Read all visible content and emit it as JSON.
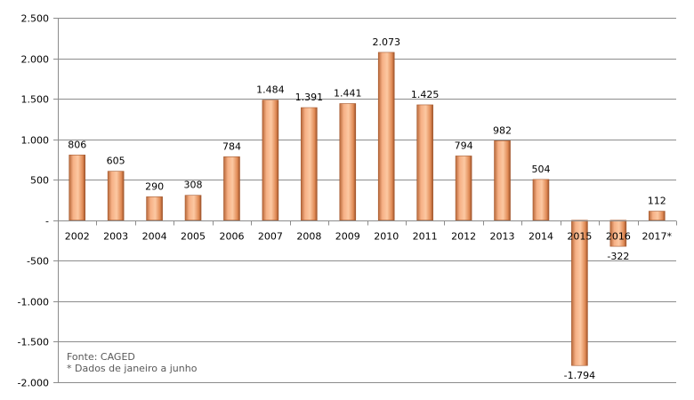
{
  "chart_data": {
    "type": "bar",
    "title": "",
    "xlabel": "",
    "ylabel": "",
    "categories": [
      "2002",
      "2003",
      "2004",
      "2005",
      "2006",
      "2007",
      "2008",
      "2009",
      "2010",
      "2011",
      "2012",
      "2013",
      "2014",
      "2015",
      "2016",
      "2017*"
    ],
    "values": [
      806,
      605,
      290,
      308,
      784,
      1484,
      1391,
      1441,
      2073,
      1425,
      794,
      982,
      504,
      -1794,
      -322,
      112
    ],
    "value_labels": [
      "806",
      "605",
      "290",
      "308",
      "784",
      "1.484",
      "1.391",
      "1.441",
      "2.073",
      "1.425",
      "794",
      "982",
      "504",
      "-1.794",
      "-322",
      "112"
    ],
    "ylim": [
      -2000,
      2500
    ],
    "yticks": [
      2500,
      2000,
      1500,
      1000,
      500,
      0,
      -500,
      -1000,
      -1500,
      -2000
    ],
    "ytick_labels": [
      "2.500",
      "2.000",
      "1.500",
      "1.000",
      "500",
      "-",
      "-500",
      "-1.000",
      "-1.500",
      "-2.000"
    ],
    "grid": true,
    "bar_color": "#f4a472",
    "annotations": [
      "Fonte: CAGED",
      "* Dados de janeiro a junho"
    ]
  }
}
